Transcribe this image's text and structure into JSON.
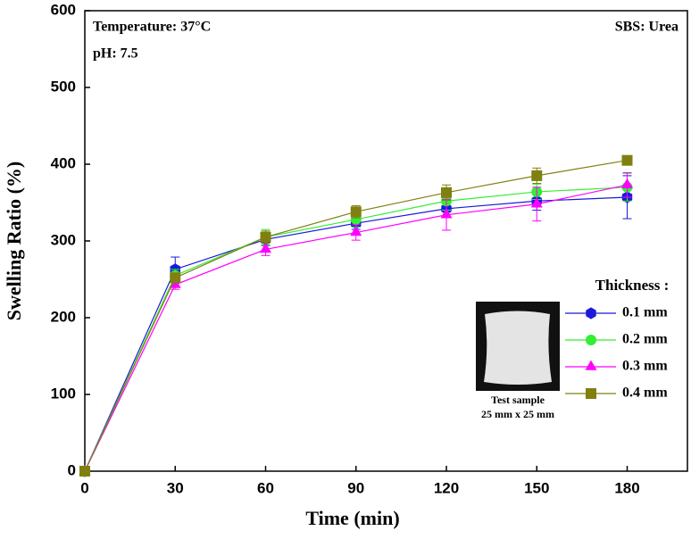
{
  "chart_data": {
    "type": "line",
    "x_label": "Time (min)",
    "y_label": "Swelling Ratio (%)",
    "annotations": [
      "Temperature: 37°C",
      "pH: 7.5",
      "SBS: Urea"
    ],
    "legend_title": "Thickness :",
    "inset_caption": [
      "Test sample",
      "25 mm x 25 mm"
    ],
    "x": [
      0,
      30,
      60,
      90,
      120,
      150,
      180
    ],
    "xlim": [
      0,
      200
    ],
    "xticks": [
      0,
      30,
      60,
      90,
      120,
      150,
      180
    ],
    "ylim": [
      0,
      600
    ],
    "yticks": [
      0,
      100,
      200,
      300,
      400,
      500,
      600
    ],
    "series": [
      {
        "name": "0.1 mm",
        "color": "#1a1ad8",
        "marker": "hexagon",
        "values": [
          0,
          263,
          302,
          323,
          342,
          352,
          357
        ],
        "errors": [
          0,
          16,
          8,
          8,
          10,
          12,
          28
        ]
      },
      {
        "name": "0.2 mm",
        "color": "#33ee33",
        "marker": "circle",
        "values": [
          0,
          255,
          305,
          328,
          352,
          364,
          370
        ],
        "errors": [
          0,
          8,
          10,
          10,
          12,
          10,
          18
        ]
      },
      {
        "name": "0.3 mm",
        "color": "#ff00ff",
        "marker": "triangle",
        "values": [
          0,
          243,
          289,
          311,
          334,
          348,
          373
        ],
        "errors": [
          0,
          6,
          8,
          10,
          20,
          22,
          16
        ]
      },
      {
        "name": "0.4 mm",
        "color": "#808010",
        "marker": "square",
        "values": [
          0,
          252,
          305,
          338,
          363,
          385,
          405
        ],
        "errors": [
          0,
          6,
          8,
          8,
          10,
          10,
          6
        ]
      }
    ]
  }
}
